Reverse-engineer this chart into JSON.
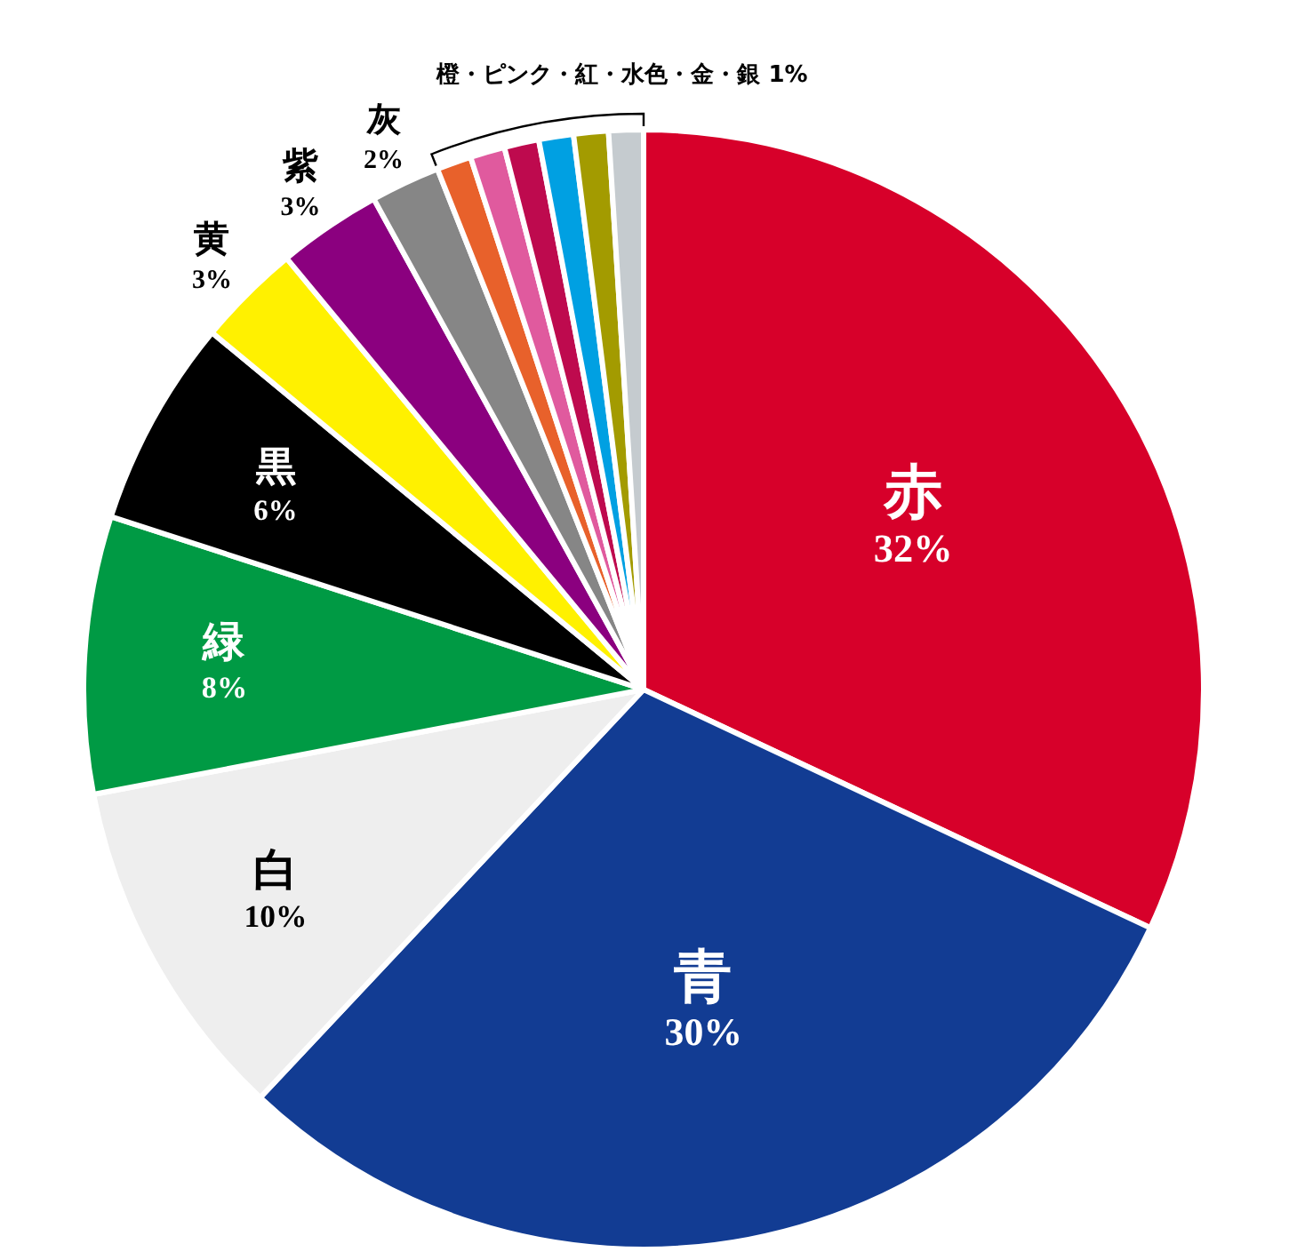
{
  "chart_data": {
    "type": "pie",
    "categories": [
      "赤",
      "青",
      "白",
      "緑",
      "黒",
      "黄",
      "紫",
      "灰",
      null,
      null,
      null,
      null,
      null,
      null
    ],
    "values": [
      32,
      30,
      10,
      8,
      6,
      3,
      3,
      2,
      1,
      1,
      1,
      1,
      1,
      1
    ],
    "value_labels": [
      "32%",
      "30%",
      "10%",
      "8%",
      "6%",
      "3%",
      "3%",
      "2%",
      null,
      null,
      null,
      null,
      null,
      null
    ],
    "colors": [
      "#d7002a",
      "#123c93",
      "#eeeeee",
      "#009a44",
      "#000000",
      "#fff100",
      "#8b007f",
      "#868686",
      "#e8612b",
      "#e05a9e",
      "#be0a4e",
      "#00a0e2",
      "#a39b00",
      "#c5cbcf"
    ],
    "annotations": [
      "橙・ピンク・紅・水色・金・銀 1%"
    ]
  }
}
